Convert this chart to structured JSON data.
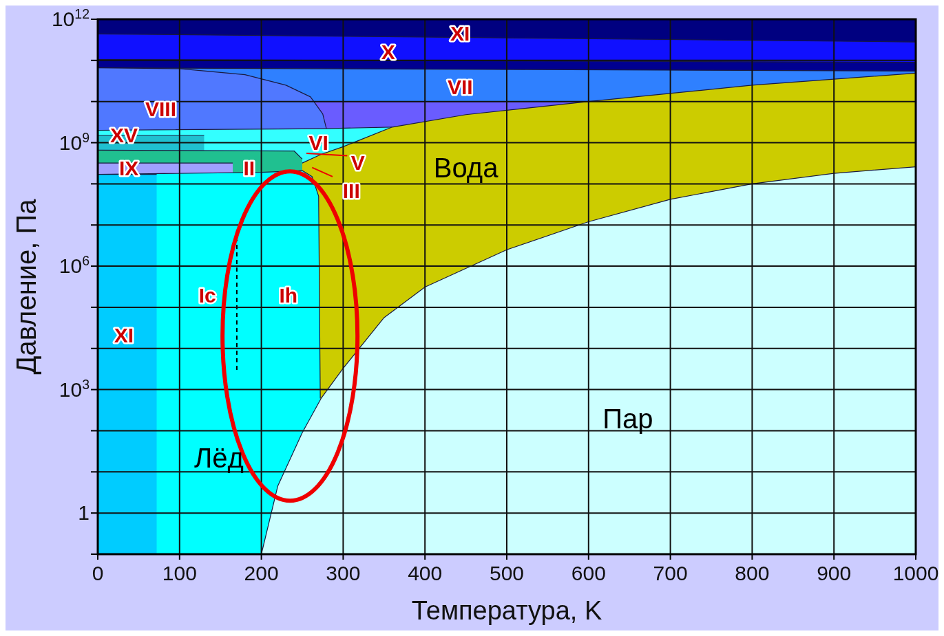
{
  "chart_data": {
    "type": "area",
    "xlabel": "Температура, K",
    "ylabel": "Давление, Па",
    "log": "y",
    "grid": true,
    "xlim": [
      0,
      1000
    ],
    "xticks": [
      0,
      100,
      200,
      300,
      400,
      500,
      600,
      700,
      800,
      900,
      1000
    ],
    "ylim": [
      0.1,
      1000000000000.0
    ],
    "yticks": [
      {
        "value": 0.1,
        "label": null
      },
      {
        "value": 1,
        "label": "1"
      },
      {
        "value": 10,
        "label": null
      },
      {
        "value": 100,
        "label": null
      },
      {
        "value": 1000,
        "label": "10$^{3}$"
      },
      {
        "value": 10000.0,
        "label": null
      },
      {
        "value": 100000.0,
        "label": null
      },
      {
        "value": 1000000.0,
        "label": "10$^{6}$"
      },
      {
        "value": 10000000.0,
        "label": null
      },
      {
        "value": 100000000.0,
        "label": null
      },
      {
        "value": 1000000000.0,
        "label": "10$^{9}$"
      },
      {
        "value": 10000000000.0,
        "label": null
      },
      {
        "value": 100000000000.0,
        "label": null
      },
      {
        "value": 1000000000000.0,
        "label": "10$^{12}$"
      }
    ],
    "series": [
      {
        "color": "#000080",
        "x": [
          0,
          1000
        ],
        "values": [
          1000000000000.0,
          1000000000000.0
        ]
      },
      {
        "color": "#1010ff",
        "x": [
          0,
          1000
        ],
        "values": [
          440000000000.0,
          280000000000.0
        ]
      },
      {
        "color": "#000090",
        "x": [
          0,
          1000
        ],
        "values": [
          105000000000.0,
          90000000000.0
        ]
      },
      {
        "color": "#2f80ff",
        "x": [
          0,
          1000
        ],
        "values": [
          66000000000.0,
          55000000000.0
        ]
      },
      {
        "color": "#6a5cff",
        "x": [
          0,
          600
        ],
        "values": [
          10000000000.0,
          10000000000.0
        ]
      },
      {
        "color": "#5078ff",
        "x": [
          0,
          100,
          180,
          230,
          260,
          275,
          280
        ],
        "values": [
          66000000000.0,
          63000000000.0,
          45000000000.0,
          25000000000.0,
          13000000000.0,
          5000000000.0,
          2000000000.0
        ]
      },
      {
        "color": "#33ffff",
        "x": [
          0,
          280,
          360
        ],
        "values": [
          2000000000.0,
          2200000000.0,
          2400000000.0
        ]
      },
      {
        "color": "#cccc00",
        "x": [
          250,
          273,
          300,
          360,
          450,
          600,
          800,
          1000
        ],
        "values": [
          320000000.0,
          520000000.0,
          800000000.0,
          2400000000.0,
          4800000000.0,
          10000000000.0,
          25000000000.0,
          49000000000.0
        ]
      },
      {
        "color": "#20c0d0",
        "x": [
          0,
          130
        ],
        "values": [
          1500000000.0,
          1500000000.0
        ]
      },
      {
        "color": "#20c090",
        "x": [
          0,
          240,
          250
        ],
        "values": [
          660000000.0,
          630000000.0,
          400000000.0
        ]
      },
      {
        "color": "#a0a0ff",
        "x": [
          0,
          165
        ],
        "values": [
          320000000.0,
          320000000.0
        ]
      },
      {
        "color": "#00ffff",
        "x": [
          0,
          200,
          250,
          262,
          270,
          272
        ],
        "values": [
          170000000.0,
          190000000.0,
          210000000.0,
          150000000.0,
          50000000.0,
          611
        ]
      },
      {
        "color": "#00ccff",
        "x": [
          0,
          72
        ],
        "values": [
          170000000.0,
          170000000.0
        ]
      },
      {
        "color": "#ccffff",
        "x": [
          200,
          220,
          250,
          273,
          300,
          350,
          400,
          500,
          600,
          700,
          800,
          900,
          1000
        ],
        "values": [
          0.1,
          4.5,
          90,
          611,
          3300,
          56000.0,
          310000.0,
          2500000.0,
          12000000.0,
          42000000.0,
          100000000.0,
          180000000.0,
          260000000.0
        ]
      },
      {
        "type": "line",
        "line_style": "dashed",
        "color": "#000000",
        "x": [
          170,
          170
        ],
        "values": [
          3000.0,
          8000000.0
        ]
      }
    ],
    "annotations": [
      "Вода",
      "Пар",
      "Лёд",
      "XI",
      "X",
      "VII",
      "VIII",
      "XV",
      "IX",
      "II",
      "VI",
      "V",
      "III",
      "Ic",
      "Ih",
      "XI"
    ]
  }
}
